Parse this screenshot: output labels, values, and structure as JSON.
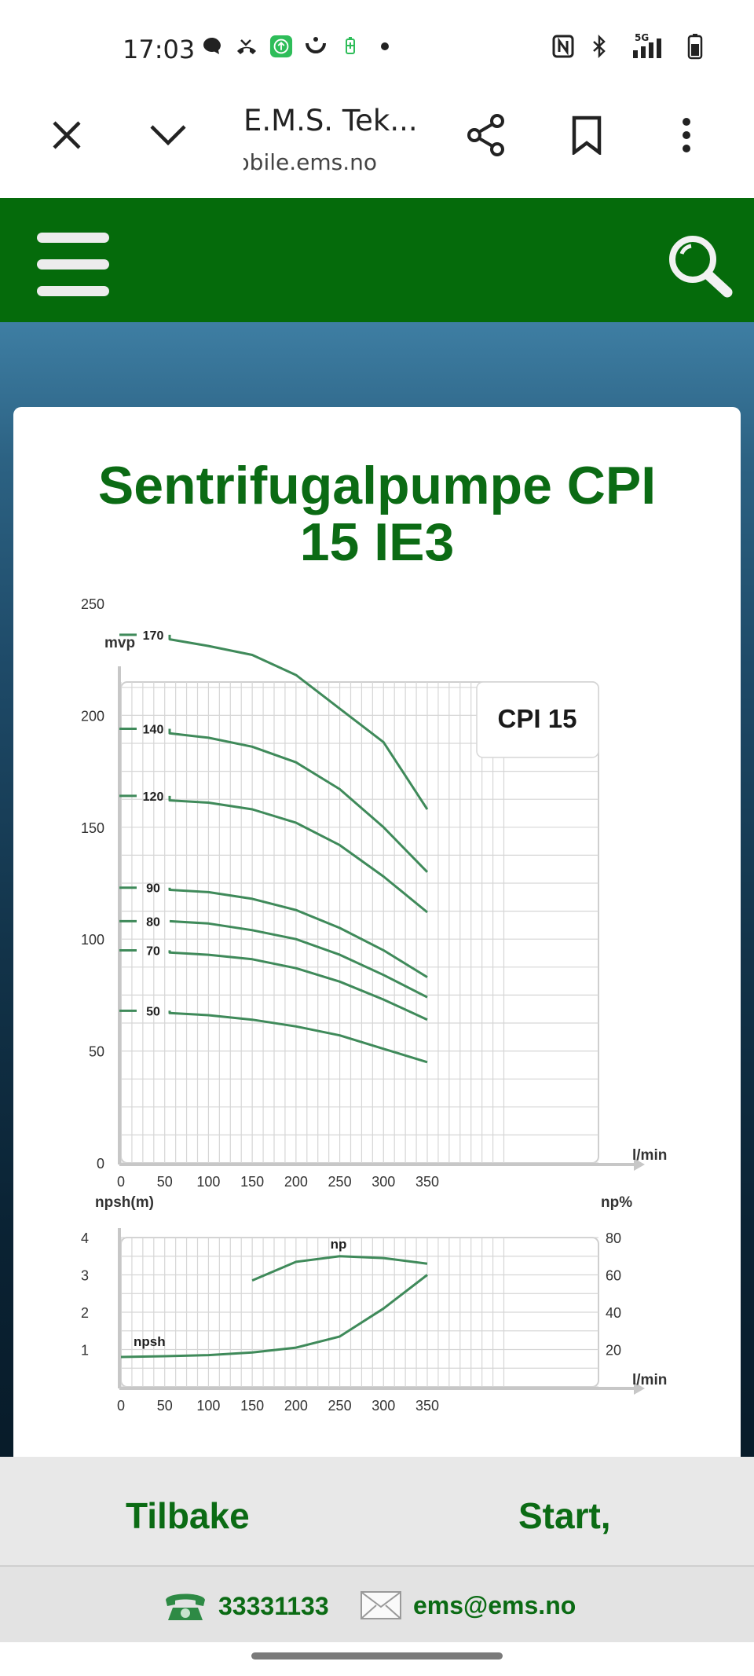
{
  "status_bar": {
    "time": "17:03",
    "network": "5G",
    "icons": [
      "message-icon",
      "missed-call-icon",
      "upload-icon",
      "smile-icon",
      "battery-saver-icon",
      "dot-icon",
      "nfc-icon",
      "bluetooth-icon",
      "signal-icon",
      "battery-icon"
    ]
  },
  "browser": {
    "title": "E.M.S. Tek...",
    "url": "mobile.ems.no"
  },
  "page": {
    "title_line1": "Sentrifugalpumpe CPI",
    "title_line2": "15 IE3"
  },
  "chart_data": [
    {
      "type": "line",
      "title": "CPI 15",
      "ylabel": "mvp",
      "xlabel": "l/min",
      "xlim": [
        0,
        350
      ],
      "ylim": [
        0,
        250
      ],
      "x_ticks": [
        "0",
        "50",
        "100",
        "150",
        "200",
        "250",
        "300",
        "350"
      ],
      "y_ticks": [
        "0",
        "50",
        "100",
        "150",
        "200",
        "250"
      ],
      "grid": true,
      "color": "#3f8a5a",
      "series": [
        {
          "name": "170",
          "x": [
            0,
            50,
            100,
            150,
            200,
            250,
            300,
            350
          ],
          "y": [
            236,
            234,
            231,
            227,
            218,
            203,
            188,
            158
          ]
        },
        {
          "name": "140",
          "x": [
            0,
            50,
            100,
            150,
            200,
            250,
            300,
            350
          ],
          "y": [
            194,
            192,
            190,
            186,
            179,
            167,
            150,
            130
          ]
        },
        {
          "name": "120",
          "x": [
            0,
            50,
            100,
            150,
            200,
            250,
            300,
            350
          ],
          "y": [
            164,
            162,
            161,
            158,
            152,
            142,
            128,
            112
          ]
        },
        {
          "name": "90",
          "x": [
            0,
            50,
            100,
            150,
            200,
            250,
            300,
            350
          ],
          "y": [
            123,
            122,
            121,
            118,
            113,
            105,
            95,
            83
          ]
        },
        {
          "name": "80",
          "x": [
            0,
            50,
            100,
            150,
            200,
            250,
            300,
            350
          ],
          "y": [
            108,
            108,
            107,
            104,
            100,
            93,
            84,
            74
          ]
        },
        {
          "name": "70",
          "x": [
            0,
            50,
            100,
            150,
            200,
            250,
            300,
            350
          ],
          "y": [
            95,
            94,
            93,
            91,
            87,
            81,
            73,
            64
          ]
        },
        {
          "name": "50",
          "x": [
            0,
            50,
            100,
            150,
            200,
            250,
            300,
            350
          ],
          "y": [
            68,
            67,
            66,
            64,
            61,
            57,
            51,
            45
          ]
        }
      ]
    },
    {
      "type": "line",
      "xlabel": "l/min",
      "ylabel": "npsh(m)",
      "ylabel_right": "np%",
      "xlim": [
        0,
        350
      ],
      "ylim": [
        0,
        4
      ],
      "ylim_right": [
        0,
        80
      ],
      "x_ticks": [
        "0",
        "50",
        "100",
        "150",
        "200",
        "250",
        "300",
        "350"
      ],
      "y_ticks": [
        "1",
        "2",
        "3",
        "4"
      ],
      "y_ticks_right": [
        "20",
        "40",
        "60",
        "80"
      ],
      "grid": true,
      "color": "#3f8a5a",
      "series": [
        {
          "name": "npsh",
          "axis": "left",
          "x": [
            0,
            50,
            100,
            150,
            200,
            250,
            300,
            350
          ],
          "y": [
            0.8,
            0.82,
            0.85,
            0.92,
            1.05,
            1.35,
            2.1,
            3.0
          ]
        },
        {
          "name": "np",
          "axis": "right",
          "x": [
            150,
            200,
            250,
            300,
            350
          ],
          "y": [
            57,
            67,
            70,
            69,
            66
          ]
        }
      ]
    }
  ],
  "footer": {
    "back_label": "Tilbake",
    "start_label": "Start,",
    "phone": "33331133",
    "email": "ems@ems.no"
  }
}
